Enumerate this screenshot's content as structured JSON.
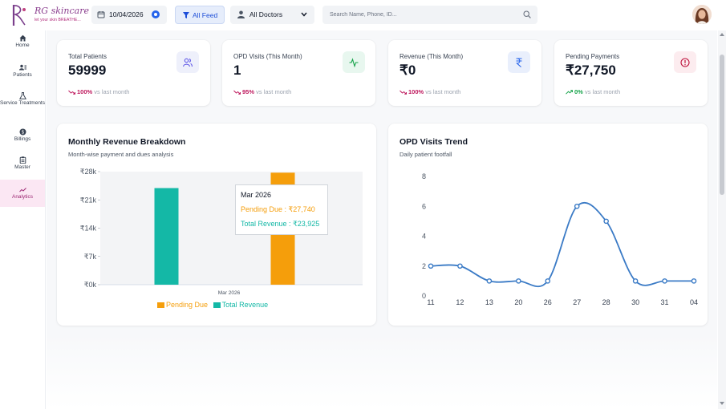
{
  "brand": {
    "name": "RG skincare",
    "tagline": "let your skin BREATHE..."
  },
  "header": {
    "date": "10/04/2026",
    "feed_label": "All Feed",
    "doctor_label": "All Doctors",
    "search_placeholder": "Search Name, Phone, ID..."
  },
  "sidebar": {
    "items": [
      {
        "label": "Home",
        "icon": "home-icon"
      },
      {
        "label": "Patients",
        "icon": "patients-icon"
      },
      {
        "label": "Service Treatments",
        "icon": "flask-icon"
      },
      {
        "label": "Billings",
        "icon": "billing-icon"
      },
      {
        "label": "Master",
        "icon": "clipboard-icon"
      },
      {
        "label": "Analytics",
        "icon": "trend-icon",
        "active": true
      }
    ]
  },
  "stats": [
    {
      "title": "Total Patients",
      "value": "59999",
      "pct": "100%",
      "suffix": "vs last month",
      "direction": "down",
      "icon": "users-icon"
    },
    {
      "title": "OPD Visits (This Month)",
      "value": "1",
      "pct": "95%",
      "suffix": "vs last month",
      "direction": "down",
      "icon": "activity-icon"
    },
    {
      "title": "Revenue (This Month)",
      "value": "₹0",
      "pct": "100%",
      "suffix": "vs last month",
      "direction": "down",
      "icon": "rupee-icon"
    },
    {
      "title": "Pending Payments",
      "value": "₹27,750",
      "pct": "0%",
      "suffix": "vs last month",
      "direction": "up",
      "icon": "alert-icon"
    }
  ],
  "colors": {
    "down": "#be185d",
    "up": "#16a34a",
    "teal": "#14b8a6",
    "orange": "#f59e0b",
    "line": "#3b7bc6",
    "active": "#9d2873"
  },
  "revenue_chart": {
    "title": "Monthly Revenue Breakdown",
    "subtitle": "Month-wise payment and dues analysis",
    "tooltip": {
      "title": "Mar 2026",
      "pending": "Pending Due : ₹27,740",
      "total": "Total Revenue : ₹23,925"
    }
  },
  "opd_chart": {
    "title": "OPD Visits Trend",
    "subtitle": "Daily patient footfall"
  },
  "chart_data": [
    {
      "type": "bar",
      "title": "Monthly Revenue Breakdown",
      "subtitle": "Month-wise payment and dues analysis",
      "categories": [
        "Mar 2026"
      ],
      "series": [
        {
          "name": "Total Revenue",
          "color": "#14b8a6",
          "values": [
            23925
          ]
        },
        {
          "name": "Pending Due",
          "color": "#f59e0b",
          "values": [
            27740
          ]
        }
      ],
      "yticks": [
        "₹0k",
        "₹7k",
        "₹14k",
        "₹21k",
        "₹28k"
      ],
      "ylim": [
        0,
        28000
      ],
      "legend": [
        "Pending Due",
        "Total Revenue"
      ],
      "legend_position": "bottom"
    },
    {
      "type": "line",
      "title": "OPD Visits Trend",
      "subtitle": "Daily patient footfall",
      "categories": [
        "11",
        "12",
        "13",
        "20",
        "26",
        "27",
        "28",
        "30",
        "31",
        "04"
      ],
      "values": [
        2,
        2,
        1,
        1,
        1,
        6,
        5,
        1,
        1,
        1
      ],
      "yticks": [
        "0",
        "2",
        "4",
        "6",
        "8"
      ],
      "ylim": [
        0,
        8
      ]
    }
  ]
}
